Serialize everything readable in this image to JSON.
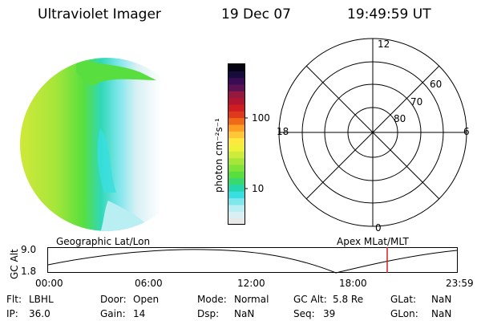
{
  "header": {
    "title": "Ultraviolet Imager",
    "date": "19 Dec 07",
    "time": "19:49:59 UT"
  },
  "colorbar": {
    "unit_label": "photon cm⁻²s⁻¹",
    "tick_100": "100",
    "tick_10": "10",
    "colors": [
      "#e8e8e8",
      "#d8f0f4",
      "#b9eef2",
      "#7fe6ec",
      "#38dfe0",
      "#25d7b0",
      "#39d96f",
      "#58df3f",
      "#7fe33a",
      "#a6e63a",
      "#cdeb3a",
      "#eef03a",
      "#ffe840",
      "#ffc63a",
      "#ff9c24",
      "#ef6a18",
      "#e03a1e",
      "#cf1d22",
      "#b21530",
      "#95183f",
      "#5c1252",
      "#3a0d53",
      "#170c3c",
      "#050311"
    ]
  },
  "polar": {
    "mlt_top": "12",
    "mlt_left": "18",
    "mlt_right": "6",
    "mlt_bottom": "0",
    "lat_60": "60",
    "lat_70": "70",
    "lat_80": "80"
  },
  "timeline": {
    "left_caption": "Geographic Lat/Lon",
    "right_caption": "Apex MLat/MLT",
    "axis_label": "GC Alt",
    "y_top": "9.0",
    "y_bottom": "1.8",
    "x_ticks": [
      "00:00",
      "06:00",
      "12:00",
      "18:00",
      "23:59"
    ],
    "marker_color": "#cc2222"
  },
  "info": {
    "flt_label": "Flt:",
    "flt_value": "LBHL",
    "door_label": "Door:",
    "door_value": "Open",
    "mode_label": "Mode:",
    "mode_value": "Normal",
    "gcalt_label": "GC Alt:",
    "gcalt_value": "5.8 Re",
    "glat_label": "GLat:",
    "glat_value": "NaN",
    "ip_label": "IP:",
    "ip_value": "36.0",
    "gain_label": "Gain:",
    "gain_value": "14",
    "dsp_label": "Dsp:",
    "dsp_value": "NaN",
    "seq_label": "Seq:",
    "seq_value": "39",
    "glon_label": "GLon:",
    "glon_value": "NaN"
  }
}
